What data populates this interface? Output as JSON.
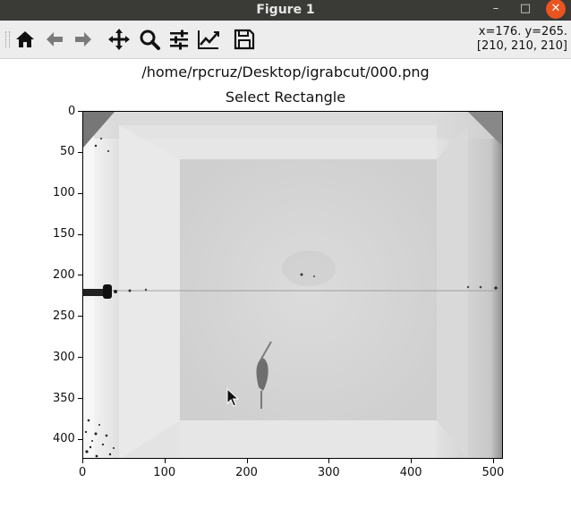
{
  "window": {
    "title": "Figure 1",
    "minimize": "–",
    "maximize": "□",
    "close": "✕"
  },
  "toolbar": {
    "buttons": [
      {
        "name": "home",
        "icon": "home-icon"
      },
      {
        "name": "back",
        "icon": "arrow-left-icon"
      },
      {
        "name": "forward",
        "icon": "arrow-right-icon"
      },
      {
        "name": "pan",
        "icon": "move-icon"
      },
      {
        "name": "zoom",
        "icon": "magnifier-icon"
      },
      {
        "name": "configure-subplots",
        "icon": "sliders-icon"
      },
      {
        "name": "edit-axis",
        "icon": "line-chart-icon"
      },
      {
        "name": "save",
        "icon": "floppy-disk-icon"
      }
    ],
    "coords_line1": "x=176. y=265.",
    "coords_line2": "[210, 210, 210]"
  },
  "figure": {
    "suptitle": "/home/rpcruz/Desktop/igrabcut/000.png",
    "axes_title": "Select Rectangle"
  },
  "chart_data": {
    "type": "image",
    "xlim": [
      0,
      512
    ],
    "ylim": [
      424,
      0
    ],
    "xticks": [
      0,
      100,
      200,
      300,
      400,
      500
    ],
    "yticks": [
      0,
      50,
      100,
      150,
      200,
      250,
      300,
      350,
      400
    ]
  }
}
